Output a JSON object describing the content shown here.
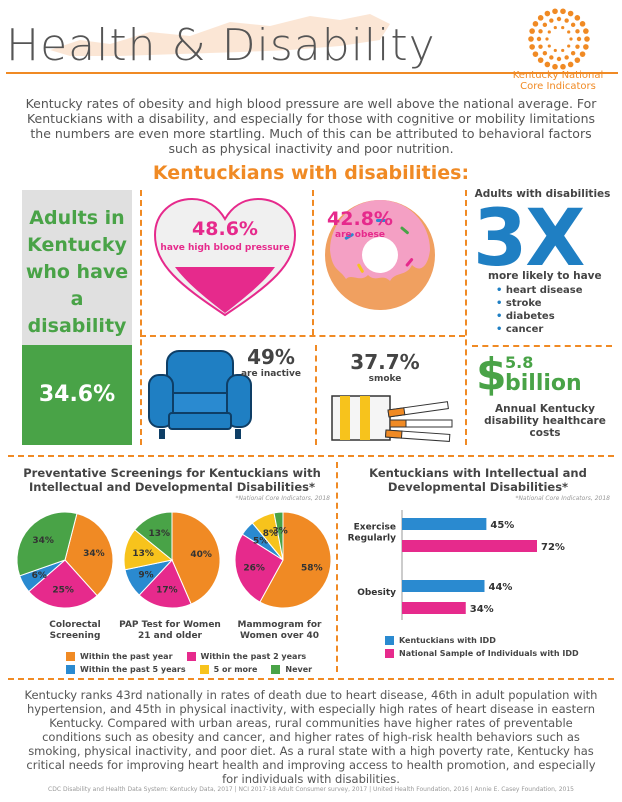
{
  "header": {
    "title": "Health & Disability",
    "logo_line1": "Kentucky National",
    "logo_line2": "Core Indicators"
  },
  "intro": "Kentucky rates of obesity and high blood pressure are well above the national average. For Kentuckians with a disability, and especially for those with cognitive or mobility limitations the numbers are even more startling. Much of this can be attributed to behavioral factors such as physical inactivity and poor nutrition.",
  "section_title": "Kentuckians with disabilities:",
  "adults": {
    "label": "Adults in Kentucky who have a disability",
    "value": "34.6%"
  },
  "stats": {
    "bp": {
      "value": "48.6%",
      "label": "have high blood pressure"
    },
    "obese": {
      "value": "42.8%",
      "label": "are obese"
    },
    "inactive": {
      "value": "49%",
      "label": "are inactive"
    },
    "smoke": {
      "value": "37.7%",
      "label": "smoke"
    }
  },
  "three_x": {
    "head": "Adults with disabilities",
    "value": "3X",
    "sub": "more likely to have",
    "items": [
      "heart disease",
      "stroke",
      "diabetes",
      "cancer"
    ]
  },
  "cost": {
    "dollar": "$",
    "amount": "5.8",
    "unit": "billion",
    "label": "Annual Kentucky disability healthcare costs"
  },
  "screenings": {
    "title": "Preventative Screenings for Kentuckians with Intellectual and Developmental Disabilities*",
    "cite": "*National Core Indicators, 2018",
    "pies": [
      {
        "label": "Colorectal Screening",
        "slices": [
          34,
          25,
          6,
          34
        ],
        "labels": [
          "34%",
          "25%",
          "6%",
          "34%"
        ]
      },
      {
        "label": "PAP Test for Women 21 and older",
        "slices": [
          40,
          17,
          9,
          13,
          13
        ],
        "labels": [
          "40%",
          "17%",
          "9%",
          "13%",
          "13%"
        ]
      },
      {
        "label": "Mammogram for Women over 40",
        "slices": [
          58,
          26,
          5,
          8,
          3
        ],
        "labels": [
          "58%",
          "26%",
          "5%",
          "8%",
          "3%"
        ]
      }
    ],
    "legend": [
      "Within the past year",
      "Within the past 2 years",
      "Within the past 5 years",
      "5 or more",
      "Never"
    ]
  },
  "idd_chart": {
    "title": "Kentuckians with Intellectual and Developmental Disabilities*",
    "cite": "*National Core Indicators, 2018",
    "legend": [
      "Kentuckians with IDD",
      "National Sample of Individuals with IDD"
    ]
  },
  "chart_data": [
    {
      "type": "pie",
      "title": "Colorectal Screening",
      "categories": [
        "Within the past year",
        "Within the past 2 years",
        "Within the past 5 years",
        "Never"
      ],
      "values": [
        34,
        25,
        6,
        34
      ]
    },
    {
      "type": "pie",
      "title": "PAP Test for Women 21 and older",
      "categories": [
        "Within the past year",
        "Within the past 2 years",
        "Within the past 5 years",
        "5 or more",
        "Never"
      ],
      "values": [
        40,
        17,
        9,
        13,
        13
      ]
    },
    {
      "type": "pie",
      "title": "Mammogram for Women over 40",
      "categories": [
        "Within the past year",
        "Within the past 2 years",
        "Within the past 5 years",
        "5 or more",
        "Never"
      ],
      "values": [
        58,
        26,
        5,
        8,
        3
      ]
    },
    {
      "type": "bar",
      "orientation": "horizontal",
      "title": "Kentuckians with Intellectual and Developmental Disabilities*",
      "categories": [
        "Exercise Regularly",
        "Obesity"
      ],
      "series": [
        {
          "name": "Kentuckians with IDD",
          "values": [
            45,
            44
          ]
        },
        {
          "name": "National Sample of Individuals with IDD",
          "values": [
            72,
            34
          ]
        }
      ],
      "value_labels": [
        [
          "45%",
          "44%"
        ],
        [
          "72%",
          "34%"
        ]
      ],
      "xlim": [
        0,
        80
      ]
    }
  ],
  "colors": {
    "orange": "#f08a24",
    "pink": "#e62a8c",
    "blue": "#2a8ad0",
    "yellow": "#f7c31c",
    "green": "#49a347"
  },
  "bottom_text": "Kentucky ranks 43rd nationally in rates of death due to heart disease, 46th in adult population with hypertension, and 45th in physical inactivity, with especially high rates of heart disease in eastern Kentucky. Compared with urban areas, rural communities have higher rates of preventable conditions such as obesity and cancer, and higher rates of high-risk health behaviors such as smoking, physical inactivity, and poor diet. As a rural state with a high poverty rate, Kentucky has critical needs for improving heart health and improving access to health promotion, and especially for individuals with disabilities.",
  "footer": "CDC Disability and Health Data System: Kentucky Data, 2017  |  NCI 2017-18 Adult Consumer survey, 2017  |  United Health Foundation, 2016  |  Annie E. Casey Foundation, 2015"
}
